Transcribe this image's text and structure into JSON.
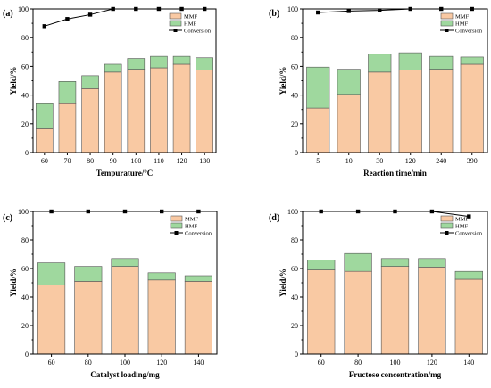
{
  "colors": {
    "mmf": "#f9c9a3",
    "hmf": "#9fd89e",
    "conversion": "#000000"
  },
  "legend": {
    "mmf": "MMF",
    "hmf": "HMF",
    "conversion": "Conversion"
  },
  "chart_data": [
    {
      "type": "bar",
      "panel_label": "(a)",
      "categories": [
        "60",
        "70",
        "80",
        "90",
        "100",
        "110",
        "120",
        "130"
      ],
      "series": [
        {
          "name": "MMF",
          "values": [
            16.5,
            34,
            44.5,
            56,
            58,
            59,
            61.5,
            57.5
          ]
        },
        {
          "name": "HMF",
          "values": [
            17.5,
            15.5,
            9,
            5.5,
            7.5,
            8,
            5.5,
            8.5
          ]
        },
        {
          "name": "Conversion",
          "values": [
            88,
            93,
            96,
            100,
            100,
            100,
            100,
            100
          ]
        }
      ],
      "xlabel": "Tempurature/°C",
      "ylabel": "Yield/%",
      "ylim": [
        0,
        100
      ],
      "yticks": [
        "0",
        "20",
        "40",
        "60",
        "80",
        "100"
      ],
      "legend_position": "top-right"
    },
    {
      "type": "bar",
      "panel_label": "(b)",
      "categories": [
        "5",
        "10",
        "30",
        "120",
        "240",
        "390"
      ],
      "series": [
        {
          "name": "MMF",
          "values": [
            31,
            40.5,
            56,
            57.5,
            58,
            61.5
          ]
        },
        {
          "name": "HMF",
          "values": [
            28.5,
            17.5,
            12.5,
            12,
            9,
            5
          ]
        },
        {
          "name": "Conversion",
          "values": [
            97.5,
            98.5,
            99,
            100,
            100,
            100
          ]
        }
      ],
      "xlabel": "Reaction time/min",
      "ylabel": "Yield/%",
      "ylim": [
        0,
        100
      ],
      "yticks": [
        "0",
        "20",
        "40",
        "60",
        "80",
        "100"
      ],
      "legend_position": "top-right"
    },
    {
      "type": "bar",
      "panel_label": "(c)",
      "categories": [
        "60",
        "80",
        "100",
        "120",
        "140"
      ],
      "series": [
        {
          "name": "MMF",
          "values": [
            48.5,
            51,
            61.5,
            52,
            51
          ]
        },
        {
          "name": "HMF",
          "values": [
            15.5,
            10.5,
            5.5,
            5,
            4
          ]
        },
        {
          "name": "Conversion",
          "values": [
            100,
            100,
            100,
            100,
            100
          ]
        }
      ],
      "xlabel": "Catalyst loading/mg",
      "ylabel": "Yield/%",
      "ylim": [
        0,
        100
      ],
      "yticks": [
        "0",
        "20",
        "40",
        "60",
        "80",
        "100"
      ],
      "legend_position": "top-right"
    },
    {
      "type": "bar",
      "panel_label": "(d)",
      "categories": [
        "60",
        "80",
        "100",
        "120",
        "140"
      ],
      "series": [
        {
          "name": "MMF",
          "values": [
            59,
            58,
            61.5,
            61,
            52.5
          ]
        },
        {
          "name": "HMF",
          "values": [
            7,
            12.5,
            5.5,
            6,
            5.5
          ]
        },
        {
          "name": "Conversion",
          "values": [
            100,
            100,
            100,
            100,
            96.5
          ]
        }
      ],
      "xlabel": "Fructose concentration/mg",
      "ylabel": "Yield/%",
      "ylim": [
        0,
        100
      ],
      "yticks": [
        "0",
        "20",
        "40",
        "60",
        "80",
        "100"
      ],
      "legend_position": "top-right"
    }
  ]
}
